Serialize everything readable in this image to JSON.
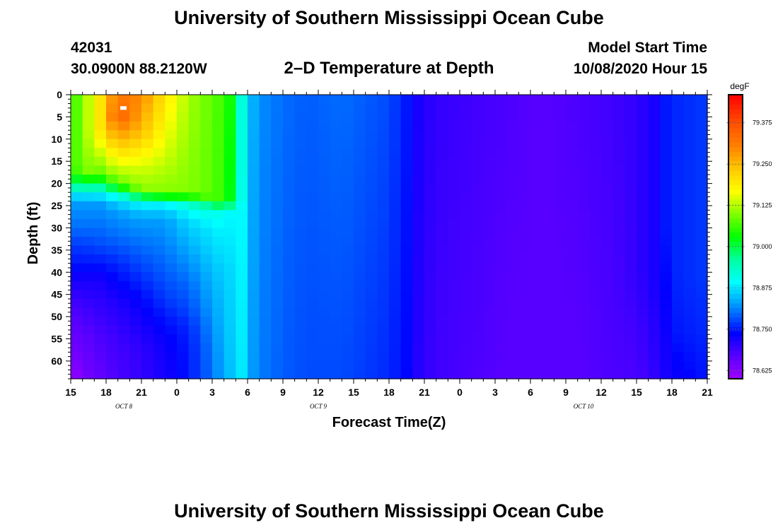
{
  "header": {
    "title": "University of Southern Mississippi Ocean Cube",
    "station_id": "42031",
    "location": "30.0900N 88.2120W",
    "subtitle": "2–D Temperature at Depth",
    "start_label": "Model Start Time",
    "start_value": "10/08/2020 Hour 15"
  },
  "footer": {
    "title": "University of Southern Mississippi Ocean Cube"
  },
  "chart_data": {
    "type": "heatmap",
    "title": "2–D Temperature at Depth",
    "xlabel": "Forecast Time(Z)",
    "ylabel": "Depth (ft)",
    "x_tick_labels": [
      "15",
      "18",
      "21",
      "0",
      "3",
      "6",
      "9",
      "12",
      "15",
      "18",
      "21",
      "0",
      "3",
      "6",
      "9",
      "12",
      "15",
      "18",
      "21"
    ],
    "x_hours": [
      0,
      3,
      6,
      9,
      12,
      15,
      18,
      21,
      24,
      27,
      30,
      33,
      36,
      39,
      42,
      45,
      48,
      51,
      54
    ],
    "x_range_hours": [
      0,
      54
    ],
    "day_labels": [
      {
        "text": "OCT 8",
        "hour": 4.5
      },
      {
        "text": "OCT 9",
        "hour": 21
      },
      {
        "text": "OCT 10",
        "hour": 43.5
      }
    ],
    "y_tick_labels": [
      "0",
      "5",
      "10",
      "15",
      "20",
      "25",
      "30",
      "35",
      "40",
      "45",
      "50",
      "55",
      "60"
    ],
    "y_ticks": [
      0,
      5,
      10,
      15,
      20,
      25,
      30,
      35,
      40,
      45,
      50,
      55,
      60
    ],
    "ylim": [
      0,
      64
    ],
    "y_inverted": true,
    "colorbar": {
      "unit": "degF",
      "min": 78.6,
      "max": 79.46,
      "tick_labels": [
        "79.375",
        "79.250",
        "79.125",
        "79.000",
        "78.875",
        "78.750",
        "78.625"
      ],
      "ticks": [
        79.375,
        79.25,
        79.125,
        79.0,
        78.875,
        78.75,
        78.625
      ]
    },
    "grid": false,
    "legend": "colorbar right",
    "depths_ft": [
      0,
      2,
      4,
      6,
      8,
      10,
      12,
      14,
      16,
      18,
      20,
      22,
      24,
      26,
      28,
      30,
      32,
      34,
      36,
      38,
      40,
      42,
      44,
      46,
      48,
      50,
      52,
      54,
      56,
      58,
      60,
      62,
      64
    ],
    "time_hours": [
      0,
      1,
      2,
      3,
      4,
      5,
      6,
      7,
      8,
      9,
      10,
      11,
      12,
      13,
      14,
      15,
      16,
      17,
      18,
      19,
      20,
      21,
      22,
      23,
      24,
      25,
      26,
      27,
      28,
      29,
      30,
      31,
      32,
      33,
      34,
      35,
      36,
      37,
      38,
      39,
      40,
      41,
      42,
      43,
      44,
      45,
      46,
      47,
      48,
      49,
      50,
      51,
      52,
      53,
      54
    ],
    "profiles": [
      {
        "hour": 0,
        "points": [
          [
            0,
            79.05
          ],
          [
            16,
            79.05
          ],
          [
            20,
            78.98
          ],
          [
            22,
            78.9
          ],
          [
            24,
            78.83
          ],
          [
            30,
            78.8
          ],
          [
            34,
            78.77
          ],
          [
            38,
            78.75
          ],
          [
            42,
            78.72
          ],
          [
            46,
            78.69
          ],
          [
            50,
            78.67
          ],
          [
            56,
            78.65
          ],
          [
            60,
            78.63
          ],
          [
            64,
            78.6
          ]
        ]
      },
      {
        "hour": 1,
        "points": [
          [
            0,
            79.1
          ],
          [
            17,
            79.1
          ],
          [
            20,
            79.0
          ],
          [
            22,
            78.9
          ],
          [
            24,
            78.83
          ],
          [
            30,
            78.8
          ],
          [
            34,
            78.77
          ],
          [
            38,
            78.75
          ],
          [
            42,
            78.72
          ],
          [
            46,
            78.7
          ],
          [
            50,
            78.68
          ],
          [
            56,
            78.66
          ],
          [
            60,
            78.65
          ],
          [
            64,
            78.64
          ]
        ]
      },
      {
        "hour": 2.5,
        "points": [
          [
            0,
            79.2
          ],
          [
            8,
            79.2
          ],
          [
            18,
            79.08
          ],
          [
            21,
            78.95
          ],
          [
            24,
            78.83
          ],
          [
            30,
            78.8
          ],
          [
            34,
            78.78
          ],
          [
            38,
            78.75
          ],
          [
            42,
            78.72
          ],
          [
            48,
            78.7
          ],
          [
            54,
            78.68
          ],
          [
            64,
            78.66
          ]
        ]
      },
      {
        "hour": 4,
        "points": [
          [
            0,
            79.32
          ],
          [
            5,
            79.35
          ],
          [
            12,
            79.22
          ],
          [
            20,
            79.08
          ],
          [
            23,
            78.9
          ],
          [
            26,
            78.83
          ],
          [
            32,
            78.8
          ],
          [
            38,
            78.76
          ],
          [
            42,
            78.74
          ],
          [
            48,
            78.71
          ],
          [
            56,
            78.69
          ],
          [
            64,
            78.68
          ]
        ]
      },
      {
        "hour": 6,
        "points": [
          [
            0,
            79.3
          ],
          [
            8,
            79.25
          ],
          [
            16,
            79.15
          ],
          [
            22,
            79.1
          ],
          [
            24,
            78.9
          ],
          [
            28,
            78.83
          ],
          [
            34,
            78.8
          ],
          [
            40,
            78.77
          ],
          [
            46,
            78.74
          ],
          [
            52,
            78.72
          ],
          [
            58,
            78.7
          ],
          [
            64,
            78.7
          ]
        ]
      },
      {
        "hour": 8,
        "points": [
          [
            0,
            79.2
          ],
          [
            12,
            79.15
          ],
          [
            22,
            79.1
          ],
          [
            25,
            78.88
          ],
          [
            28,
            78.83
          ],
          [
            34,
            78.81
          ],
          [
            40,
            78.79
          ],
          [
            46,
            78.77
          ],
          [
            50,
            78.75
          ],
          [
            56,
            78.73
          ],
          [
            64,
            78.72
          ]
        ]
      },
      {
        "hour": 10,
        "points": [
          [
            0,
            79.12
          ],
          [
            22,
            79.1
          ],
          [
            25,
            78.92
          ],
          [
            28,
            78.87
          ],
          [
            36,
            78.83
          ],
          [
            42,
            78.8
          ],
          [
            48,
            78.78
          ],
          [
            52,
            78.76
          ],
          [
            58,
            78.75
          ],
          [
            64,
            78.75
          ]
        ]
      },
      {
        "hour": 12,
        "points": [
          [
            0,
            79.08
          ],
          [
            23,
            79.08
          ],
          [
            26,
            78.92
          ],
          [
            30,
            78.88
          ],
          [
            40,
            78.85
          ],
          [
            48,
            78.83
          ],
          [
            56,
            78.81
          ],
          [
            64,
            78.8
          ]
        ]
      },
      {
        "hour": 13,
        "points": [
          [
            0,
            79.06
          ],
          [
            24,
            79.05
          ],
          [
            27,
            78.9
          ],
          [
            40,
            78.86
          ],
          [
            64,
            78.84
          ]
        ]
      },
      {
        "hour": 14,
        "points": [
          [
            0,
            79.02
          ],
          [
            23,
            79.0
          ],
          [
            27,
            78.88
          ],
          [
            64,
            78.86
          ]
        ]
      },
      {
        "hour": 14.6,
        "points": [
          [
            0,
            78.9
          ],
          [
            64,
            78.88
          ]
        ]
      },
      {
        "hour": 15,
        "points": [
          [
            0,
            78.86
          ],
          [
            64,
            78.84
          ]
        ]
      },
      {
        "hour": 16,
        "points": [
          [
            0,
            78.82
          ],
          [
            64,
            78.81
          ]
        ]
      },
      {
        "hour": 18,
        "points": [
          [
            0,
            78.8
          ],
          [
            64,
            78.79
          ]
        ]
      },
      {
        "hour": 20,
        "points": [
          [
            0,
            78.79
          ],
          [
            64,
            78.78
          ]
        ]
      },
      {
        "hour": 23,
        "points": [
          [
            0,
            78.8
          ],
          [
            64,
            78.78
          ]
        ]
      },
      {
        "hour": 25,
        "points": [
          [
            0,
            78.79
          ],
          [
            64,
            78.77
          ]
        ]
      },
      {
        "hour": 27,
        "points": [
          [
            0,
            78.78
          ],
          [
            64,
            78.76
          ]
        ]
      },
      {
        "hour": 28.5,
        "points": [
          [
            0,
            78.75
          ],
          [
            64,
            78.74
          ]
        ]
      },
      {
        "hour": 29.5,
        "points": [
          [
            0,
            78.72
          ],
          [
            64,
            78.71
          ]
        ]
      },
      {
        "hour": 31,
        "points": [
          [
            0,
            78.7
          ],
          [
            64,
            78.69
          ]
        ]
      },
      {
        "hour": 34,
        "points": [
          [
            0,
            78.69
          ],
          [
            64,
            78.68
          ]
        ]
      },
      {
        "hour": 37,
        "points": [
          [
            0,
            78.68
          ],
          [
            64,
            78.67
          ]
        ]
      },
      {
        "hour": 40,
        "points": [
          [
            0,
            78.67
          ],
          [
            64,
            78.67
          ]
        ]
      },
      {
        "hour": 43,
        "points": [
          [
            0,
            78.68
          ],
          [
            64,
            78.67
          ]
        ]
      },
      {
        "hour": 46,
        "points": [
          [
            0,
            78.69
          ],
          [
            64,
            78.68
          ]
        ]
      },
      {
        "hour": 48,
        "points": [
          [
            0,
            78.7
          ],
          [
            40,
            78.7
          ],
          [
            64,
            78.68
          ]
        ]
      },
      {
        "hour": 49.5,
        "points": [
          [
            0,
            78.72
          ],
          [
            40,
            78.72
          ],
          [
            64,
            78.7
          ]
        ]
      },
      {
        "hour": 50.5,
        "points": [
          [
            0,
            78.75
          ],
          [
            30,
            78.75
          ],
          [
            64,
            78.72
          ]
        ]
      },
      {
        "hour": 51.5,
        "points": [
          [
            0,
            78.76
          ],
          [
            40,
            78.76
          ],
          [
            54,
            78.75
          ],
          [
            64,
            78.73
          ]
        ]
      },
      {
        "hour": 54,
        "points": [
          [
            0,
            78.77
          ],
          [
            40,
            78.77
          ],
          [
            54,
            78.76
          ],
          [
            64,
            78.75
          ]
        ]
      }
    ]
  }
}
